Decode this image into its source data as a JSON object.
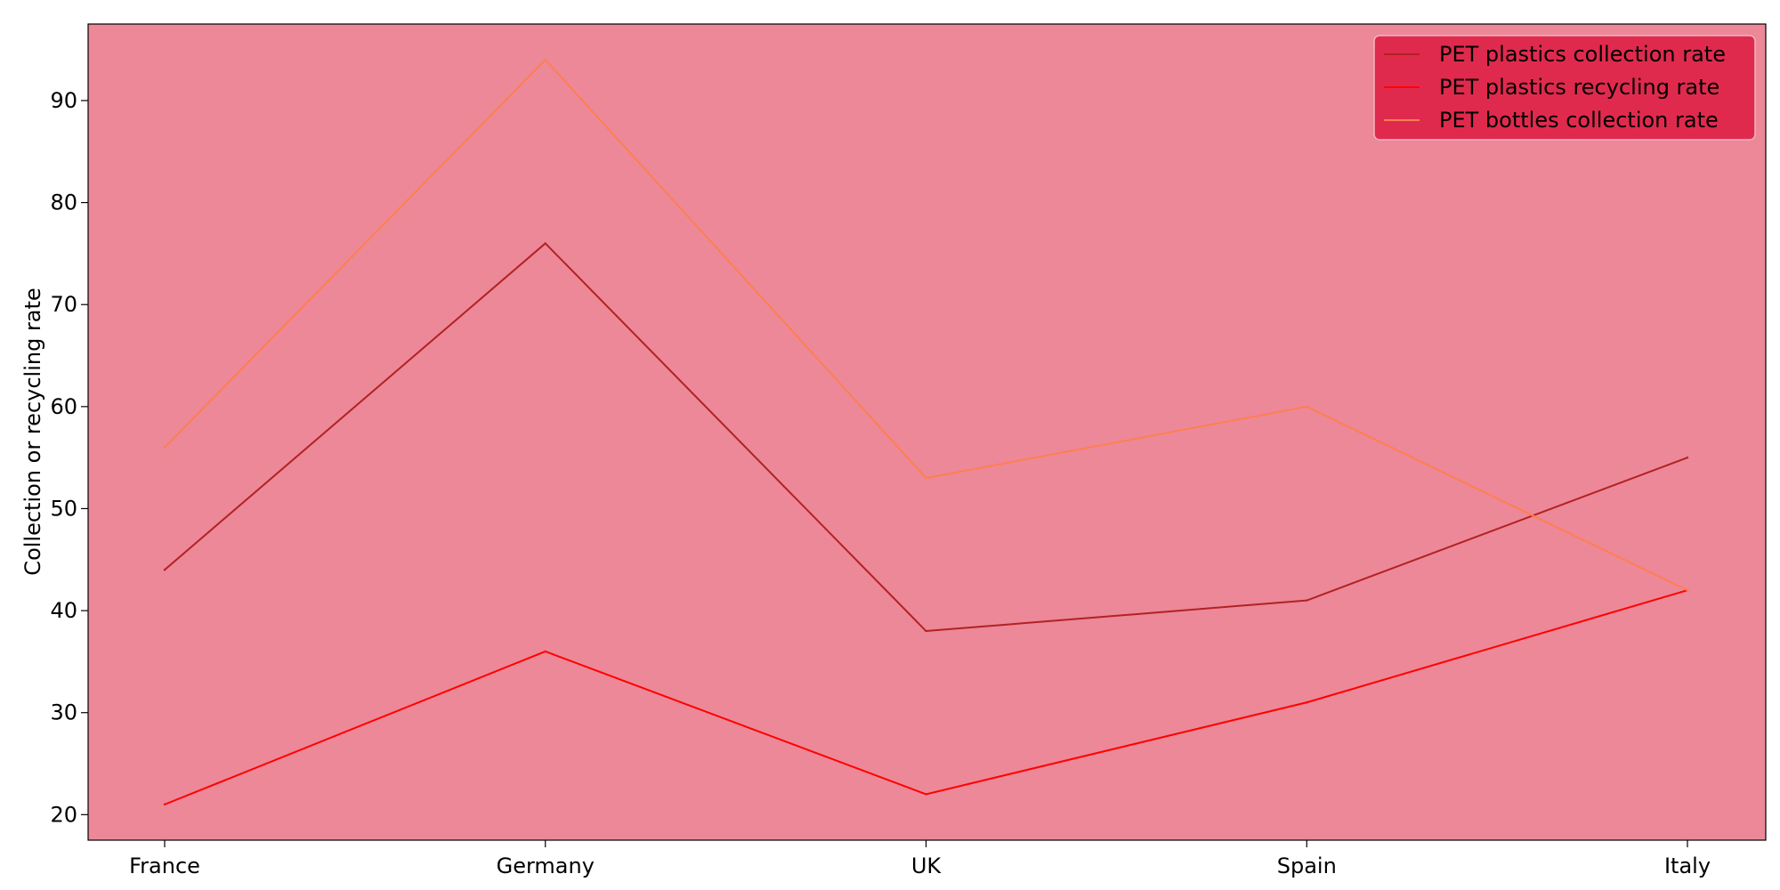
{
  "chart_data": {
    "type": "line",
    "title": "",
    "xlabel": "",
    "ylabel": "Collection or recycling rate",
    "categories": [
      "France",
      "Germany",
      "UK",
      "Spain",
      "Italy"
    ],
    "ylim": [
      17.5,
      97.5
    ],
    "yticks": [
      20,
      30,
      40,
      50,
      60,
      70,
      80,
      90
    ],
    "grid": false,
    "legend_position": "top-right",
    "plot_background": "#ec8898",
    "legend_background": "#e02a4d",
    "series": [
      {
        "name": "PET plastics collection rate",
        "color": "#b22222",
        "values": [
          44,
          76,
          38,
          41,
          55
        ]
      },
      {
        "name": "PET plastics recycling rate",
        "color": "#ff0000",
        "values": [
          21,
          36,
          22,
          31,
          42
        ]
      },
      {
        "name": "PET bottles collection rate",
        "color": "#ff7f50",
        "values": [
          56,
          94,
          53,
          60,
          42
        ]
      }
    ]
  }
}
